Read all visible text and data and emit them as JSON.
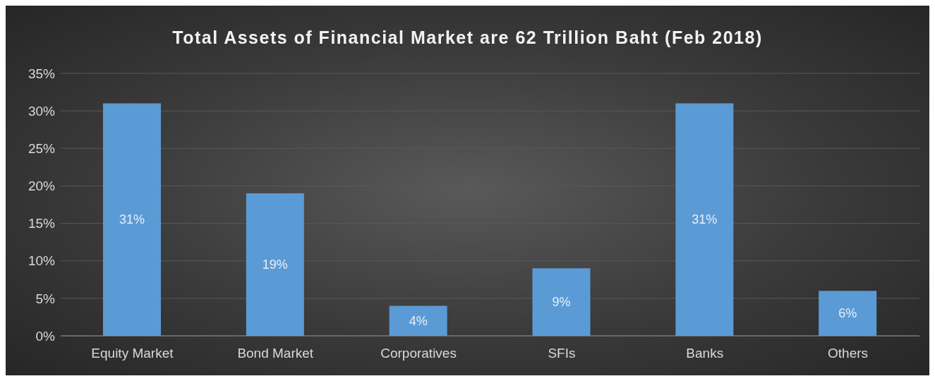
{
  "chart_data": {
    "type": "bar",
    "title": "Total Assets of Financial Market are 62 Trillion Baht (Feb 2018)",
    "categories": [
      "Equity Market",
      "Bond Market",
      "Corporatives",
      "SFIs",
      "Banks",
      "Others"
    ],
    "values": [
      31,
      19,
      4,
      9,
      31,
      6
    ],
    "value_labels": [
      "31%",
      "19%",
      "4%",
      "9%",
      "31%",
      "6%"
    ],
    "color": "#5b9bd5",
    "ylim": [
      0,
      35
    ],
    "yticks": [
      {
        "value": 0,
        "label": "0%"
      },
      {
        "value": 5,
        "label": "5%"
      },
      {
        "value": 10,
        "label": "10%"
      },
      {
        "value": 15,
        "label": "15%"
      },
      {
        "value": 20,
        "label": "20%"
      },
      {
        "value": 25,
        "label": "25%"
      },
      {
        "value": 30,
        "label": "30%"
      },
      {
        "value": 35,
        "label": "35%"
      }
    ],
    "grid": "y",
    "legend": false
  }
}
